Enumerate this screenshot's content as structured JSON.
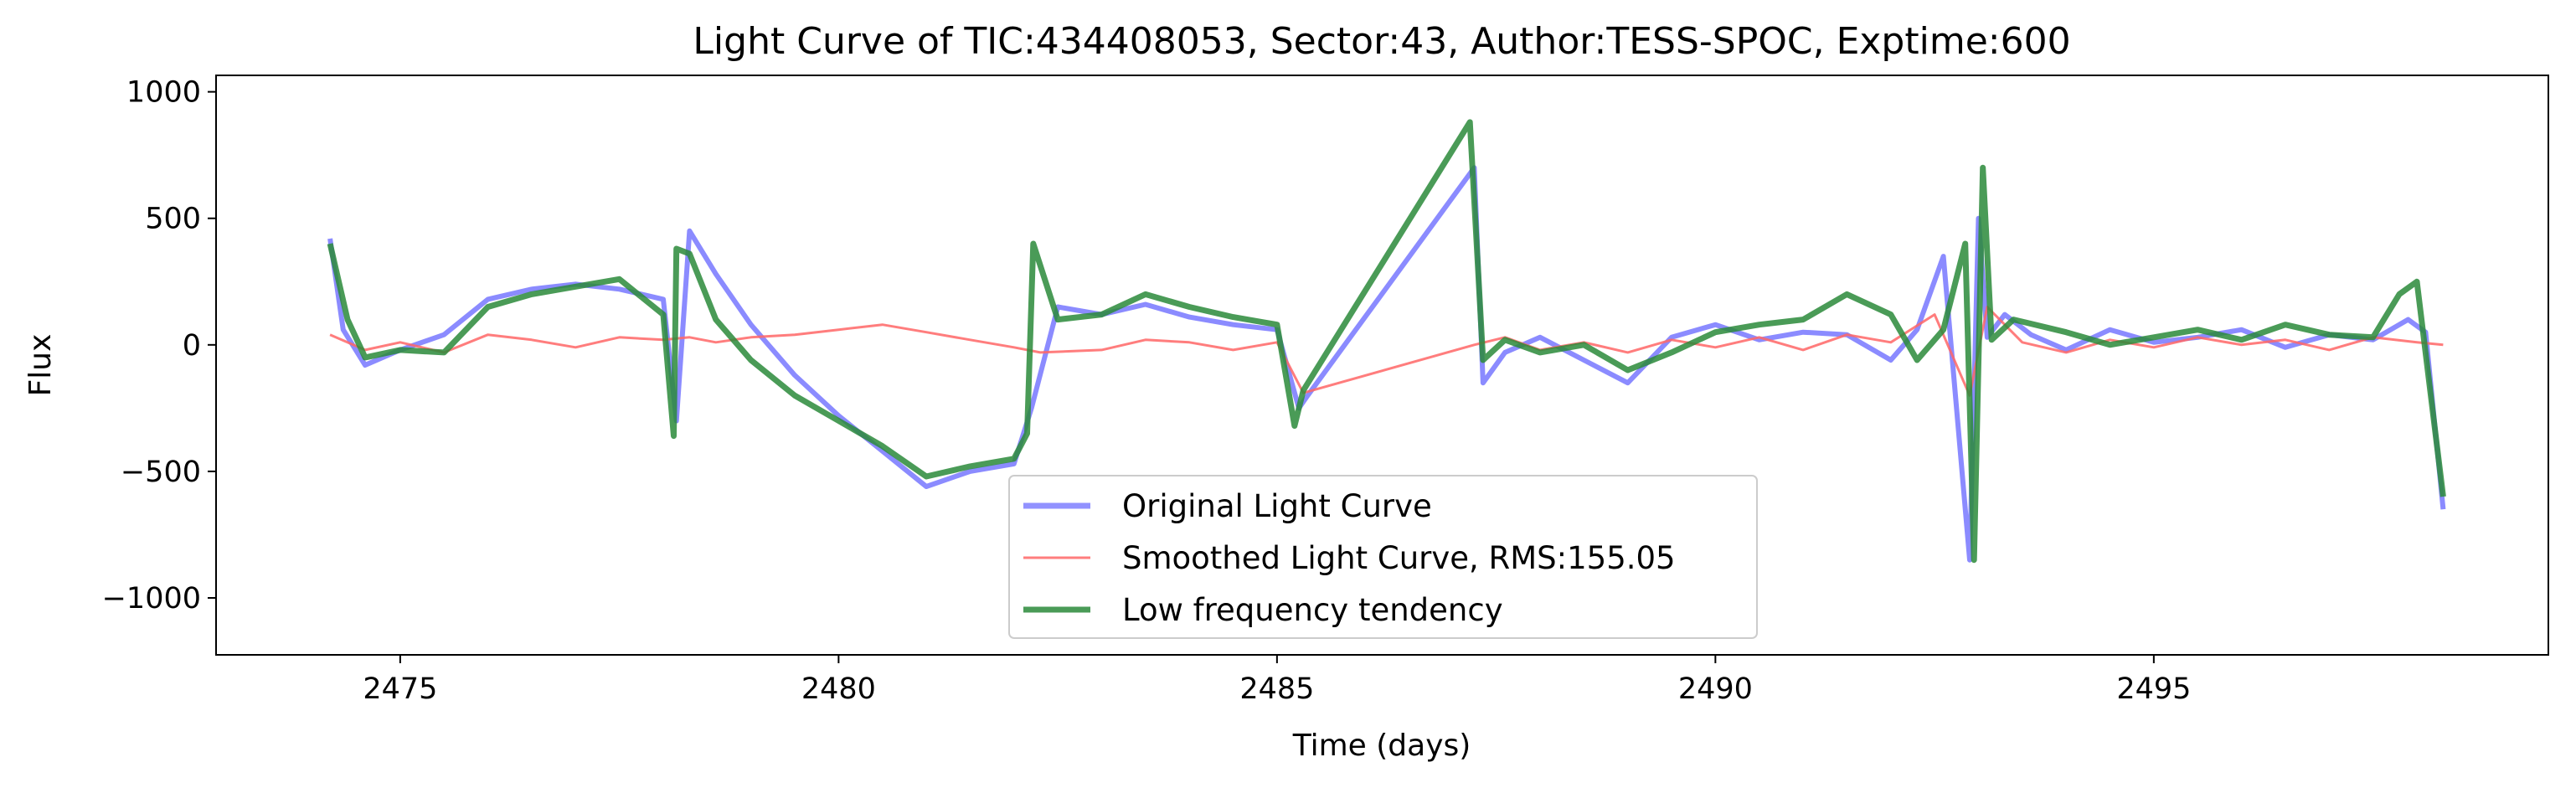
{
  "chart_data": {
    "type": "line",
    "title": "Light Curve of TIC:434408053, Sector:43, Author:TESS-SPOC, Exptime:600",
    "xlabel": "Time (days)",
    "ylabel": "Flux",
    "xlim": [
      2472.9,
      2499.5
    ],
    "ylim": [
      -1225,
      1065
    ],
    "x_ticks": [
      2475,
      2480,
      2485,
      2490,
      2495
    ],
    "y_ticks": [
      -1000,
      -500,
      0,
      500,
      1000
    ],
    "x_tick_labels": [
      "2475",
      "2480",
      "2485",
      "2490",
      "2495"
    ],
    "y_tick_labels": [
      "−1000",
      "−500",
      "0",
      "500",
      "1000"
    ],
    "grid": false,
    "legend_position": "lower-center",
    "series": [
      {
        "name": "Original Light Curve",
        "color": "#7777ff",
        "x": [
          2474.2,
          2474.35,
          2474.6,
          2475.0,
          2475.5,
          2476.0,
          2476.5,
          2477.0,
          2477.5,
          2478.0,
          2478.15,
          2478.3,
          2478.6,
          2479.0,
          2479.5,
          2480.0,
          2480.5,
          2481.0,
          2481.5,
          2482.0,
          2482.2,
          2482.5,
          2483.0,
          2483.5,
          2484.0,
          2484.5,
          2485.0,
          2485.25,
          2485.35,
          2487.25,
          2487.35,
          2487.6,
          2488.0,
          2488.5,
          2489.0,
          2489.5,
          2490.0,
          2490.5,
          2491.0,
          2491.5,
          2492.0,
          2492.3,
          2492.6,
          2492.9,
          2493.0,
          2493.1,
          2493.3,
          2493.6,
          2494.0,
          2494.5,
          2495.0,
          2495.5,
          2496.0,
          2496.5,
          2497.0,
          2497.5,
          2497.9,
          2498.1,
          2498.3
        ],
        "y": [
          420,
          60,
          -80,
          -20,
          40,
          180,
          220,
          240,
          220,
          180,
          -300,
          450,
          280,
          80,
          -120,
          -280,
          -420,
          -560,
          -500,
          -470,
          -250,
          150,
          120,
          160,
          110,
          80,
          60,
          -250,
          -200,
          700,
          -150,
          -30,
          30,
          -60,
          -150,
          30,
          80,
          20,
          50,
          40,
          -60,
          60,
          350,
          -850,
          500,
          30,
          120,
          40,
          -20,
          60,
          10,
          30,
          60,
          -10,
          40,
          20,
          100,
          50,
          -650
        ]
      },
      {
        "name": "Smoothed Light Curve, RMS:155.05",
        "color": "#ff6666",
        "x": [
          2474.2,
          2474.6,
          2475.0,
          2475.5,
          2476.0,
          2476.5,
          2477.0,
          2477.5,
          2478.0,
          2478.3,
          2478.6,
          2479.0,
          2479.5,
          2480.0,
          2480.5,
          2481.0,
          2481.5,
          2482.0,
          2482.3,
          2483.0,
          2483.5,
          2484.0,
          2484.5,
          2485.0,
          2485.3,
          2487.25,
          2487.6,
          2488.0,
          2488.5,
          2489.0,
          2489.5,
          2490.0,
          2490.5,
          2491.0,
          2491.5,
          2492.0,
          2492.5,
          2492.9,
          2493.1,
          2493.5,
          2494.0,
          2494.5,
          2495.0,
          2495.5,
          2496.0,
          2496.5,
          2497.0,
          2497.5,
          2498.0,
          2498.3
        ],
        "y": [
          40,
          -20,
          10,
          -30,
          40,
          20,
          -10,
          30,
          20,
          30,
          10,
          30,
          40,
          60,
          80,
          50,
          20,
          -10,
          -30,
          -20,
          20,
          10,
          -20,
          10,
          -190,
          0,
          30,
          -20,
          10,
          -30,
          20,
          -10,
          30,
          -20,
          40,
          10,
          120,
          -200,
          150,
          10,
          -30,
          20,
          -10,
          30,
          0,
          20,
          -20,
          30,
          10,
          0
        ]
      },
      {
        "name": "Low frequency tendency",
        "color": "#2a8a3a",
        "x": [
          2474.2,
          2474.4,
          2474.6,
          2475.0,
          2475.5,
          2476.0,
          2476.5,
          2477.0,
          2477.5,
          2478.0,
          2478.12,
          2478.15,
          2478.3,
          2478.6,
          2479.0,
          2479.5,
          2480.0,
          2480.5,
          2481.0,
          2481.5,
          2482.0,
          2482.15,
          2482.22,
          2482.5,
          2483.0,
          2483.5,
          2484.0,
          2484.5,
          2485.0,
          2485.2,
          2485.3,
          2487.2,
          2487.28,
          2487.35,
          2487.6,
          2488.0,
          2488.5,
          2489.0,
          2489.5,
          2490.0,
          2490.5,
          2491.0,
          2491.5,
          2492.0,
          2492.3,
          2492.6,
          2492.85,
          2492.95,
          2493.05,
          2493.15,
          2493.4,
          2494.0,
          2494.5,
          2495.0,
          2495.5,
          2496.0,
          2496.5,
          2497.0,
          2497.5,
          2497.8,
          2498.0,
          2498.3
        ],
        "y": [
          400,
          100,
          -50,
          -20,
          -30,
          150,
          200,
          230,
          260,
          120,
          -360,
          380,
          360,
          100,
          -60,
          -200,
          -300,
          -400,
          -520,
          -480,
          -450,
          -350,
          400,
          100,
          120,
          200,
          150,
          110,
          80,
          -320,
          -180,
          880,
          380,
          -60,
          20,
          -30,
          0,
          -100,
          -30,
          50,
          80,
          100,
          200,
          120,
          -60,
          60,
          400,
          -850,
          700,
          20,
          100,
          50,
          0,
          30,
          60,
          20,
          80,
          40,
          30,
          200,
          250,
          -600
        ]
      }
    ]
  }
}
